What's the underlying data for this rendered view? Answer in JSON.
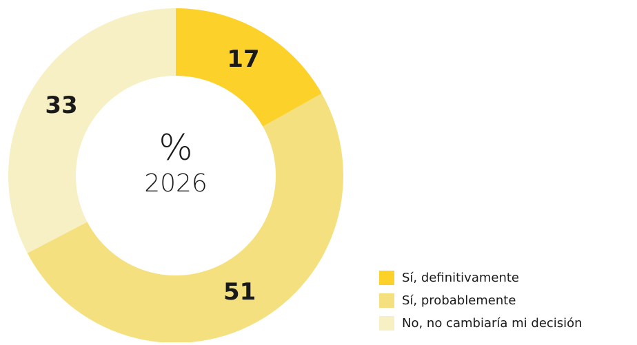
{
  "chart_data": {
    "type": "donut",
    "center_title": "%",
    "center_subtitle": "2026",
    "categories": [
      "Sí, definitivamente",
      "Sí, probablemente",
      "No, no cambiaría mi decisión"
    ],
    "values": [
      17,
      51,
      33
    ],
    "colors": [
      "#fcd12a",
      "#f4e07e",
      "#f7f0c4"
    ],
    "legend": "bottom-right"
  }
}
